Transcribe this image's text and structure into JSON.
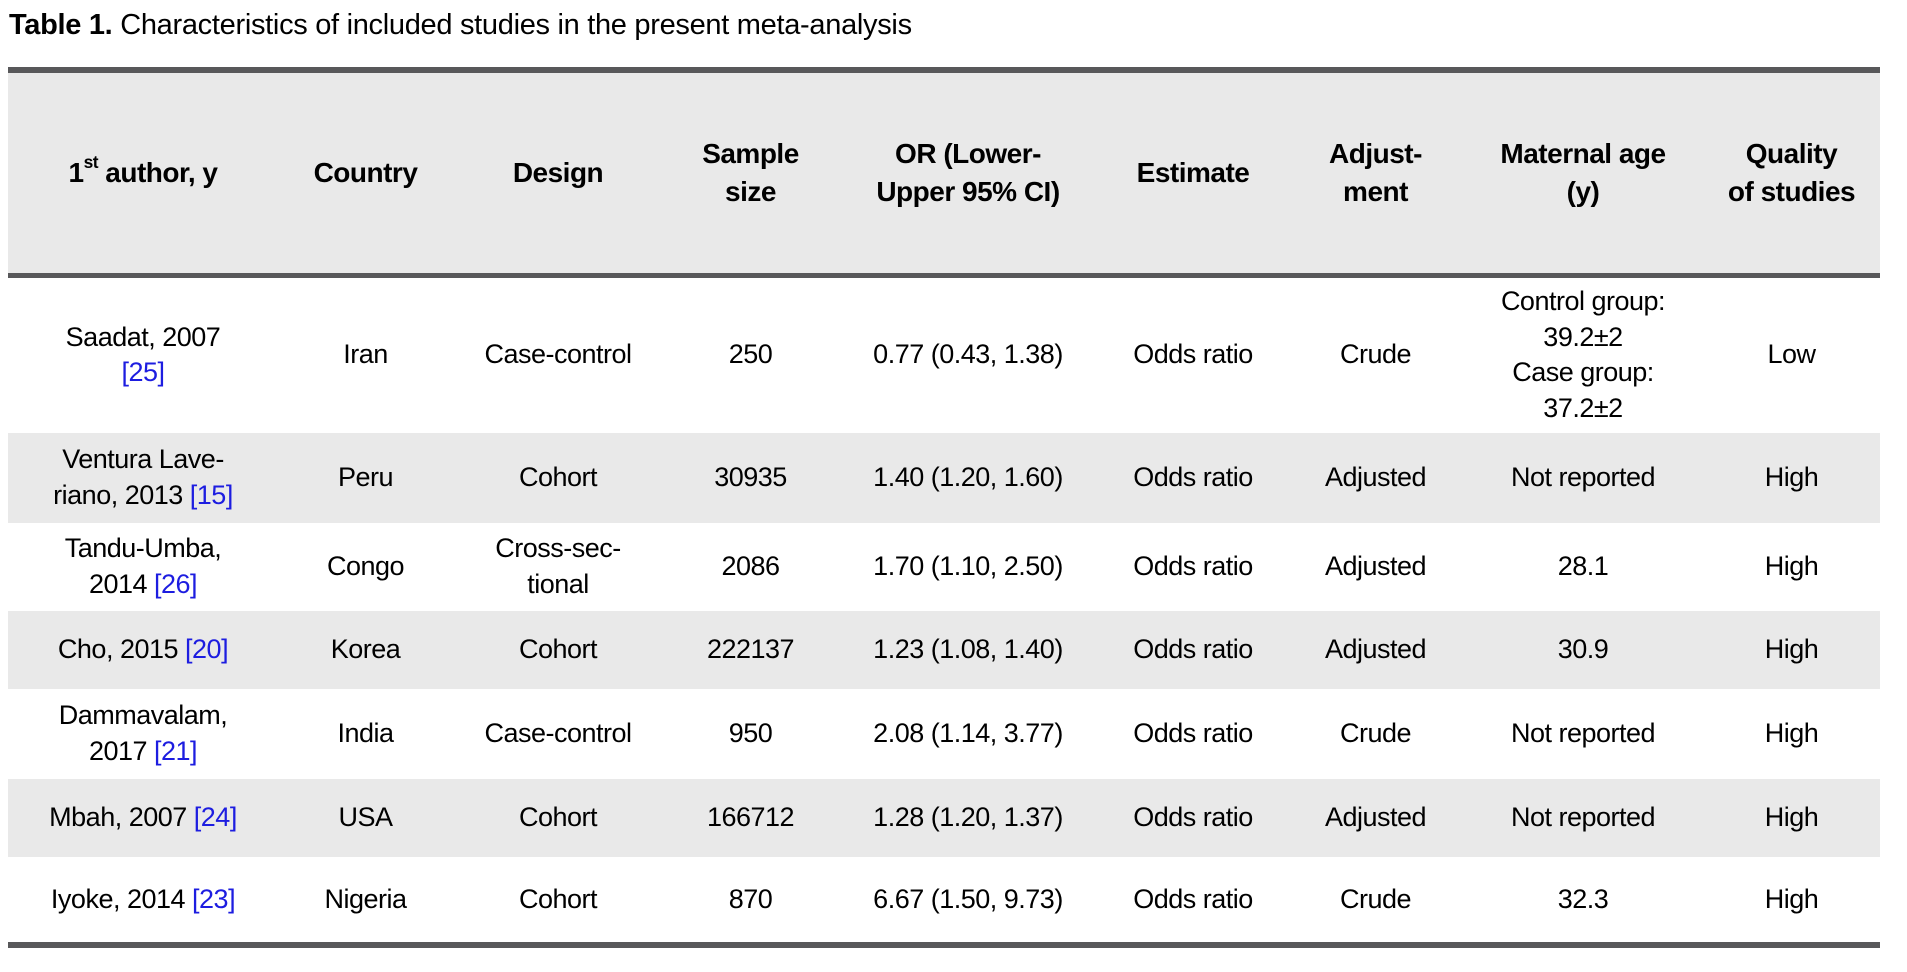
{
  "caption": {
    "label": "Table 1.",
    "text": " Characteristics of included studies in the present meta-analysis"
  },
  "table": {
    "link_color": "#1d1de0",
    "header_bg": "#e9e9e9",
    "row_shade_bg": "#e9e9e9",
    "rule_color": "#58585a",
    "headers": [
      {
        "key": "author",
        "num": "1",
        "sup": "st",
        "rest": " author, y"
      },
      {
        "key": "country",
        "label": "Country"
      },
      {
        "key": "design",
        "label": "Design"
      },
      {
        "key": "sample_size",
        "label": "Sample\nsize"
      },
      {
        "key": "or_ci",
        "label": "OR (Lower-\nUpper 95% CI)"
      },
      {
        "key": "estimate",
        "label": "Estimate"
      },
      {
        "key": "adjustment",
        "label": "Adjust-\nment"
      },
      {
        "key": "maternal_age",
        "label": "Maternal age\n(y)"
      },
      {
        "key": "quality",
        "label": "Quality\nof studies"
      }
    ],
    "rows": [
      {
        "author": "Saadat, 2007\n",
        "citation": "[25]",
        "country": "Iran",
        "design": "Case-control",
        "sample_size": "250",
        "or_ci": "0.77 (0.43, 1.38)",
        "estimate": "Odds ratio",
        "adjustment": "Crude",
        "maternal_age": "Control group:\n39.2±2\nCase group:\n37.2±2",
        "quality": "Low",
        "shaded": false
      },
      {
        "author": "Ventura Lave-\nriano, 2013 ",
        "citation": "[15]",
        "country": "Peru",
        "design": "Cohort",
        "sample_size": "30935",
        "or_ci": "1.40 (1.20, 1.60)",
        "estimate": "Odds ratio",
        "adjustment": "Adjusted",
        "maternal_age": "Not reported",
        "quality": "High",
        "shaded": true
      },
      {
        "author": "Tandu-Umba,\n2014 ",
        "citation": "[26]",
        "country": "Congo",
        "design": "Cross-sec-\ntional",
        "sample_size": "2086",
        "or_ci": "1.70 (1.10, 2.50)",
        "estimate": "Odds ratio",
        "adjustment": "Adjusted",
        "maternal_age": "28.1",
        "quality": "High",
        "shaded": false
      },
      {
        "author": "Cho, 2015 ",
        "citation": "[20]",
        "country": "Korea",
        "design": "Cohort",
        "sample_size": "222137",
        "or_ci": "1.23 (1.08, 1.40)",
        "estimate": "Odds ratio",
        "adjustment": "Adjusted",
        "maternal_age": "30.9",
        "quality": "High",
        "shaded": true
      },
      {
        "author": "Dammavalam,\n2017 ",
        "citation": "[21]",
        "country": "India",
        "design": "Case-control",
        "sample_size": "950",
        "or_ci": "2.08 (1.14, 3.77)",
        "estimate": "Odds ratio",
        "adjustment": "Crude",
        "maternal_age": "Not reported",
        "quality": "High",
        "shaded": false
      },
      {
        "author": "Mbah, 2007 ",
        "citation": "[24]",
        "country": "USA",
        "design": "Cohort",
        "sample_size": "166712",
        "or_ci": "1.28 (1.20, 1.37)",
        "estimate": "Odds ratio",
        "adjustment": "Adjusted",
        "maternal_age": "Not reported",
        "quality": "High",
        "shaded": true
      },
      {
        "author": "Iyoke, 2014 ",
        "citation": "[23]",
        "country": "Nigeria",
        "design": "Cohort",
        "sample_size": "870",
        "or_ci": "6.67 (1.50, 9.73)",
        "estimate": "Odds ratio",
        "adjustment": "Crude",
        "maternal_age": "32.3",
        "quality": "High",
        "shaded": false
      }
    ]
  }
}
